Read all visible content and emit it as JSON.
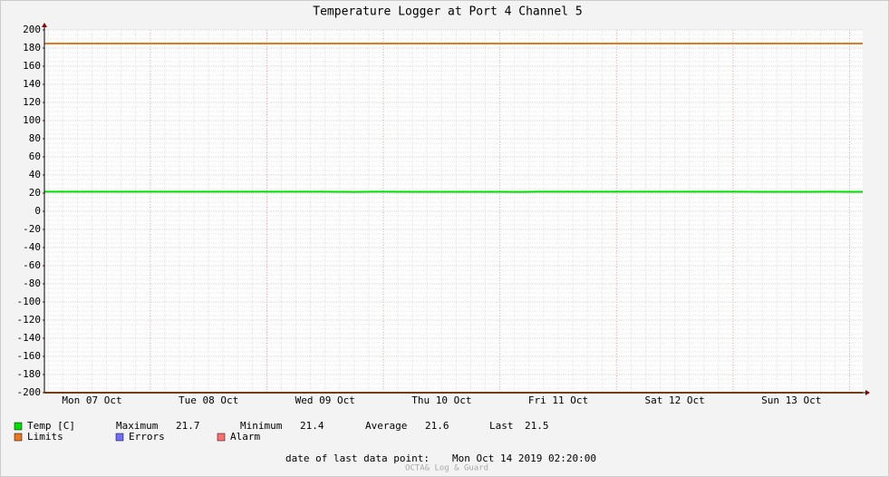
{
  "chart_data": {
    "type": "line",
    "title": "Temperature Logger at Port 4 Channel 5",
    "xlim": [
      2.2,
      170.7
    ],
    "xticks": [
      {
        "value": 12,
        "label": "Mon 07 Oct"
      },
      {
        "value": 36,
        "label": "Tue 08 Oct"
      },
      {
        "value": 60,
        "label": "Wed 09 Oct"
      },
      {
        "value": 84,
        "label": "Thu 10 Oct"
      },
      {
        "value": 108,
        "label": "Fri 11 Oct"
      },
      {
        "value": 132,
        "label": "Sat 12 Oct"
      },
      {
        "value": 156,
        "label": "Sun 13 Oct"
      }
    ],
    "ylim": [
      -200,
      200
    ],
    "yticks": [
      -200,
      -180,
      -160,
      -140,
      -120,
      -100,
      -80,
      -60,
      -40,
      -20,
      0,
      20,
      40,
      60,
      80,
      100,
      120,
      140,
      160,
      180,
      200
    ],
    "grid": true,
    "series": [
      {
        "name": "Temp [C]",
        "color": "#00e000",
        "x": [
          2.2,
          12,
          24,
          36,
          48,
          60,
          62,
          66,
          70,
          72,
          78,
          84,
          96,
          100,
          104,
          108,
          120,
          132,
          144,
          150,
          156,
          160,
          164,
          168,
          170.7
        ],
        "values": [
          21.6,
          21.6,
          21.6,
          21.6,
          21.6,
          21.6,
          21.5,
          21.4,
          21.6,
          21.6,
          21.5,
          21.5,
          21.5,
          21.4,
          21.6,
          21.6,
          21.6,
          21.6,
          21.6,
          21.5,
          21.5,
          21.5,
          21.6,
          21.5,
          21.5
        ]
      }
    ],
    "limits": {
      "name": "Limits",
      "color": "#e8781e",
      "values": [
        185,
        -200
      ]
    },
    "legend_extra": [
      {
        "name": "Errors",
        "color": "#6f6fff"
      },
      {
        "name": "Alarm",
        "color": "#ff6f6f"
      }
    ],
    "stats": [
      {
        "label": "Maximum",
        "value": 21.7
      },
      {
        "label": "Minimum",
        "value": 21.4
      },
      {
        "label": "Average",
        "value": 21.6
      },
      {
        "label": "Last",
        "value": 21.5
      }
    ],
    "footer_label": "date of last data point:",
    "footer_value": "Mon Oct 14 2019 02:20:00",
    "watermark": "OCTA& Log & Guard"
  }
}
